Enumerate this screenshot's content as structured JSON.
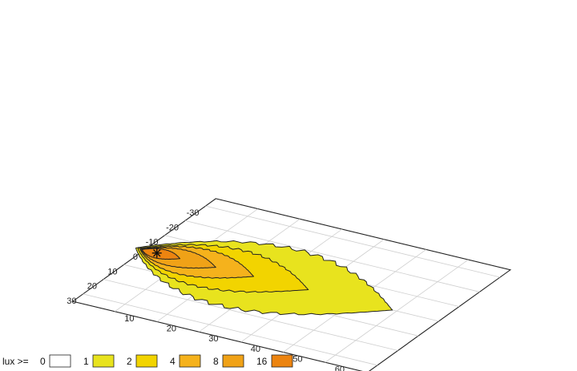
{
  "chart_data": {
    "type": "contour",
    "title": "",
    "xlabel": "",
    "ylabel": "",
    "x_axis": {
      "range": [
        0,
        70
      ],
      "ticks": [
        "10",
        "20",
        "30",
        "40",
        "50",
        "60"
      ]
    },
    "y_axis": {
      "range": [
        -35,
        35
      ],
      "ticks": [
        "30",
        "20",
        "10",
        "0",
        "-10",
        "-20",
        "-30"
      ]
    },
    "grid": true,
    "light_source": {
      "x": 3,
      "y": 0,
      "marker": "asterisk"
    },
    "legend": {
      "placement": "bottom-left",
      "title": "lux >=",
      "levels": [
        {
          "label": "0",
          "color": "#ffffff"
        },
        {
          "label": "1",
          "color": "#e8e31e"
        },
        {
          "label": "2",
          "color": "#f2d400"
        },
        {
          "label": "4",
          "color": "#f5b21c"
        },
        {
          "label": "8",
          "color": "#f0a217"
        },
        {
          "label": "16",
          "color": "#ec8410"
        }
      ]
    },
    "contours": [
      {
        "level": "1",
        "color": "#e8e31e",
        "near": -2,
        "far": 59,
        "halfwidth": 19,
        "peak_x": 33
      },
      {
        "level": "2",
        "color": "#f2d400",
        "near": -1.5,
        "far": 39,
        "halfwidth": 12,
        "peak_x": 20
      },
      {
        "level": "4",
        "color": "#f5b21c",
        "near": -1,
        "far": 26,
        "halfwidth": 8,
        "peak_x": 13
      },
      {
        "level": "8",
        "color": "#f0a217",
        "near": -0.8,
        "far": 17,
        "halfwidth": 5,
        "peak_x": 8
      },
      {
        "level": "16",
        "color": "#ec8410",
        "near": -0.5,
        "far": 8.5,
        "halfwidth": 2.7,
        "peak_x": 4
      }
    ]
  }
}
